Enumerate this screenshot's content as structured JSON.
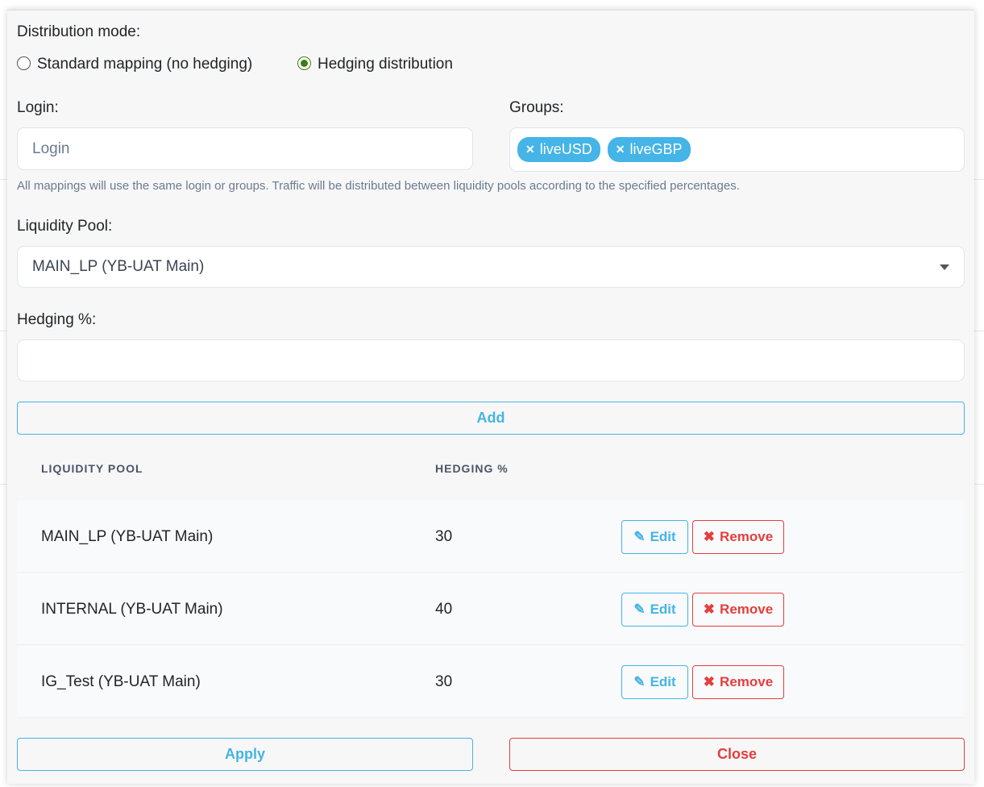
{
  "distribution": {
    "label": "Distribution mode:",
    "options": [
      {
        "label": "Standard mapping (no hedging)",
        "selected": false
      },
      {
        "label": "Hedging distribution",
        "selected": true
      }
    ]
  },
  "login": {
    "label": "Login:",
    "placeholder": "Login",
    "value": ""
  },
  "groups": {
    "label": "Groups:",
    "tags": [
      "liveUSD",
      "liveGBP"
    ]
  },
  "help_text": "All mappings will use the same login or groups. Traffic will be distributed between liquidity pools according to the specified percentages.",
  "pool": {
    "label": "Liquidity Pool:",
    "selected": "MAIN_LP (YB-UAT Main)"
  },
  "hedging": {
    "label": "Hedging %:",
    "value": ""
  },
  "add_label": "Add",
  "table": {
    "headers": [
      "LIQUIDITY POOL",
      "HEDGING %"
    ],
    "rows": [
      {
        "pool": "MAIN_LP (YB-UAT Main)",
        "hedging": "30"
      },
      {
        "pool": "INTERNAL (YB-UAT Main)",
        "hedging": "40"
      },
      {
        "pool": "IG_Test (YB-UAT Main)",
        "hedging": "30"
      }
    ],
    "edit_label": "Edit",
    "remove_label": "Remove"
  },
  "apply_label": "Apply",
  "close_label": "Close",
  "colors": {
    "accent": "#45b4e6",
    "danger": "#e53e3e",
    "radio": "#3f7d12"
  }
}
